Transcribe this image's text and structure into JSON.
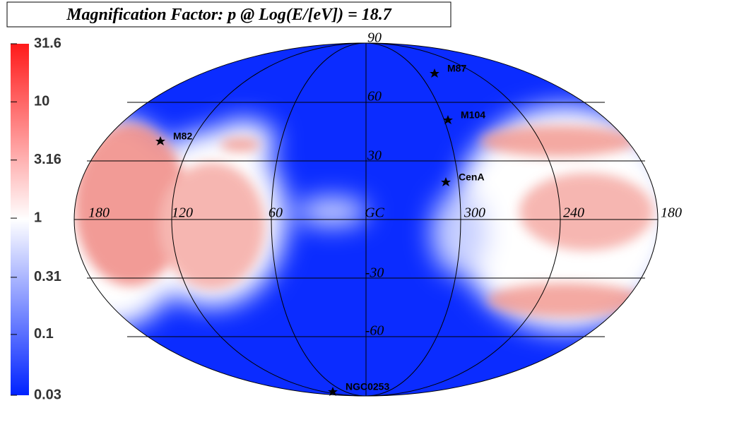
{
  "title": "Magnification Factor: p @ Log(E/[eV]) = 18.7",
  "colorbar": {
    "lim": [
      0.03,
      31.6
    ],
    "log": true,
    "ticks": [
      31.6,
      10,
      3.16,
      1,
      0.31,
      0.1,
      0.03
    ]
  },
  "grid": {
    "longitude_labels": [
      "180",
      "120",
      "60",
      "GC",
      "300",
      "240",
      "180"
    ],
    "latitude_labels": [
      "90",
      "60",
      "30",
      "-30",
      "-60"
    ]
  },
  "sources": [
    "M87",
    "M104",
    "M82",
    "CenA",
    "NGC0253"
  ]
}
